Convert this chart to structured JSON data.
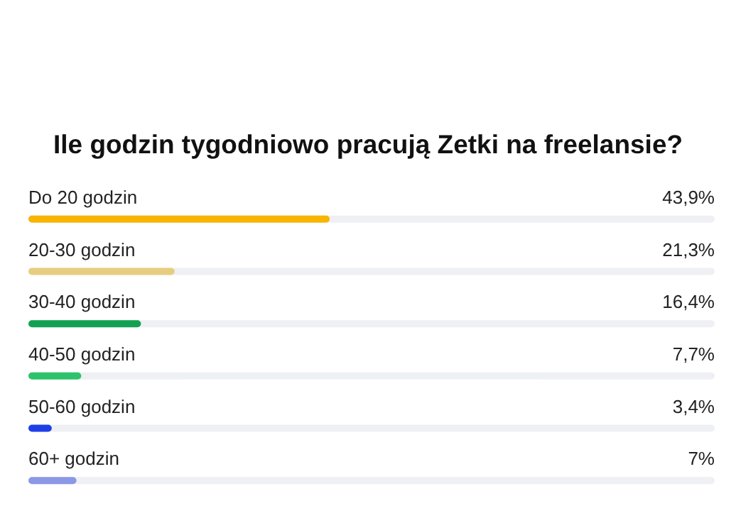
{
  "chart_data": {
    "type": "bar",
    "orientation": "horizontal",
    "title": "Ile godzin tygodniowo pracują Zetki na freelansie?",
    "categories": [
      "Do 20 godzin",
      "20-30 godzin",
      "30-40 godzin",
      "40-50 godzin",
      "50-60 godzin",
      "60+ godzin"
    ],
    "values": [
      43.9,
      21.3,
      16.4,
      7.7,
      3.4,
      7
    ],
    "colors": [
      "#f7b500",
      "#e8cd80",
      "#12a150",
      "#2dc36a",
      "#1f3fe6",
      "#8a98e6"
    ],
    "value_labels": [
      "43,9%",
      "21,3%",
      "16,4%",
      "7,7%",
      "3,4%",
      "7%"
    ],
    "xlim": [
      0,
      100
    ],
    "tick_labels": false
  }
}
